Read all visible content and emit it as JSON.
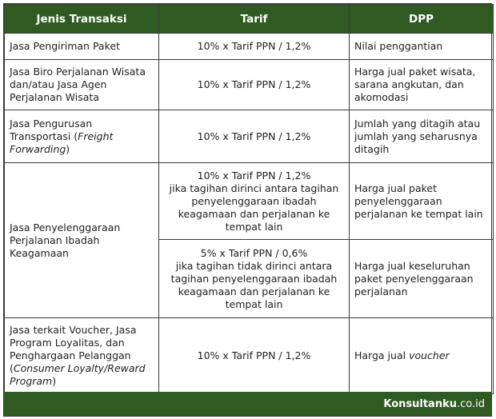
{
  "header": {
    "col_jenis": "Jenis Transaksi",
    "col_tarif": "Tarif",
    "col_dpp": "DPP"
  },
  "rows": [
    {
      "jenis": "Jasa Pengiriman Paket",
      "tarif": "10% x Tarif PPN / 1,2%",
      "dpp": "Nilai penggantian"
    },
    {
      "jenis": "Jasa Biro Perjalanan Wisata dan/atau Jasa Agen Perjalanan Wisata",
      "tarif": "10% x Tarif PPN / 1,2%",
      "dpp": "Harga jual paket wisata, sarana angkutan, dan akomodasi"
    },
    {
      "jenis_a": "Jasa Pengurusan Transportasi (",
      "jenis_italic": "Freight Forwarding",
      "jenis_b": ")",
      "tarif": "10% x Tarif PPN / 1,2%",
      "dpp": "Jumlah yang ditagih atau jumlah yang seharusnya ditagih"
    },
    {
      "jenis": "Jasa Penyelenggaraan Perjalanan Ibadah Keagamaan",
      "sub": [
        {
          "tarif_line1": "10% x Tarif PPN / 1,2%",
          "tarif_line2": "jika tagihan dirinci antara tagihan penyelenggaraan ibadah keagamaan dan perjalanan ke tempat lain",
          "dpp": "Harga jual paket penyelenggaraan perjalanan ke tempat lain"
        },
        {
          "tarif_line1": "5% x Tarif PPN / 0,6%",
          "tarif_line2": "jika tagihan tidak dirinci antara tagihan penyelenggaraan ibadah keagamaan dan perjalanan ke tempat lain",
          "dpp": "Harga jual keseluruhan paket penyelenggaraan perjalanan"
        }
      ]
    },
    {
      "jenis_a": "Jasa terkait Voucher, Jasa Program Loyalitas, dan Penghargaan Pelanggan (",
      "jenis_italic": "Consumer Loyalty/Reward Program",
      "jenis_b": ")",
      "tarif": "10% x Tarif PPN / 1,2%",
      "dpp_a": "Harga jual ",
      "dpp_italic": "voucher"
    }
  ],
  "footer": {
    "brand": "Konsultanku",
    "domain": ".co.id"
  },
  "colors": {
    "header_bg": "#2f5b22",
    "header_text": "#ffffff",
    "border": "#3a3a3a"
  }
}
